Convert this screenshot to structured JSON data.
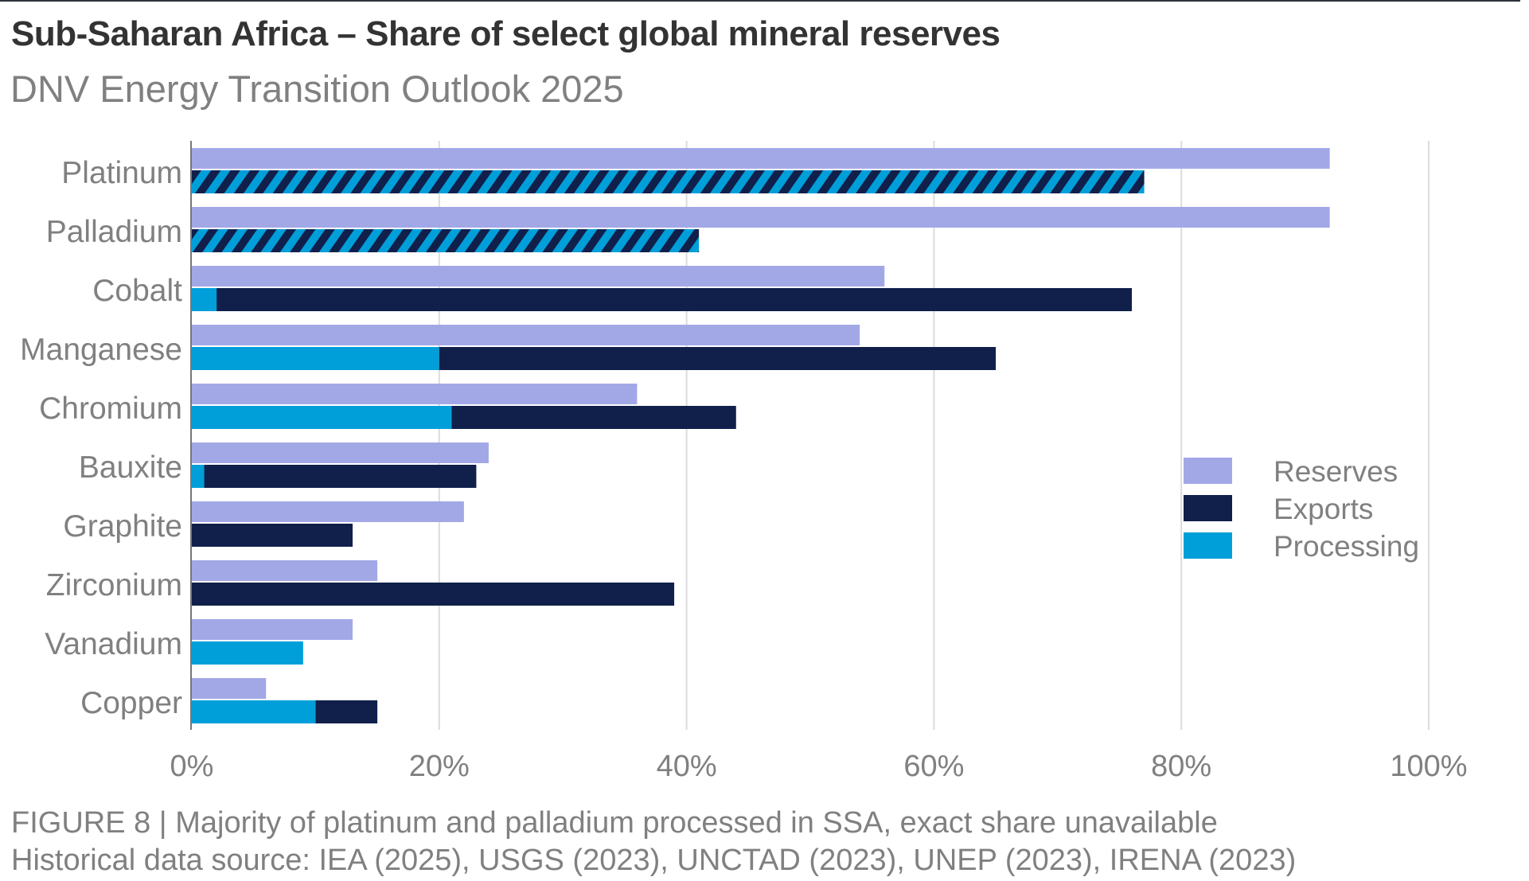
{
  "header": {
    "title": "Sub-Saharan Africa – Share of select global mineral reserves",
    "subtitle": "DNV Energy Transition Outlook 2025"
  },
  "footer": {
    "caption": "FIGURE 8 | Majority of platinum and palladium processed in SSA, exact share unavailable",
    "source": "Historical data source: IEA (2025), USGS (2023), UNCTAD (2023), UNEP (2023), IRENA (2023)"
  },
  "chart_data": {
    "type": "bar",
    "orientation": "horizontal",
    "title": "Sub-Saharan Africa – Share of select global mineral reserves",
    "subtitle": "DNV Energy Transition Outlook 2025",
    "xlabel": "",
    "ylabel": "",
    "xlim": [
      0,
      100
    ],
    "x_unit": "%",
    "x_ticks": [
      "0%",
      "20%",
      "40%",
      "60%",
      "80%",
      "100%"
    ],
    "grid": "vertical",
    "legend_position": "right",
    "categories": [
      "Platinum",
      "Palladium",
      "Cobalt",
      "Manganese",
      "Chromium",
      "Bauxite",
      "Graphite",
      "Zirconium",
      "Vanadium",
      "Copper"
    ],
    "series": [
      {
        "name": "Reserves",
        "color": "#a2a8e6",
        "bar": "top",
        "values": [
          92,
          92,
          56,
          54,
          36,
          24,
          22,
          15,
          13,
          6
        ]
      },
      {
        "name": "Processing",
        "color": "#009fd9",
        "bar": "bottom",
        "stack_order": 1,
        "values": [
          0,
          0,
          2,
          20,
          21,
          1,
          0,
          0,
          9,
          10
        ]
      },
      {
        "name": "Exports",
        "color": "#10204b",
        "bar": "bottom",
        "stack_order": 2,
        "values": [
          0,
          0,
          74,
          45,
          23,
          22,
          13,
          39,
          0,
          5
        ]
      }
    ],
    "hatched": {
      "description": "Exports and processing combined; exact processing share unavailable",
      "colors": [
        "#10204b",
        "#009fd9"
      ],
      "categories": [
        "Platinum",
        "Palladium"
      ],
      "values": [
        77,
        41
      ]
    },
    "legend": [
      {
        "label": "Reserves",
        "color": "#a2a8e6"
      },
      {
        "label": "Exports",
        "color": "#10204b"
      },
      {
        "label": "Processing",
        "color": "#009fd9"
      }
    ],
    "annotation": "FIGURE 8 | Majority of platinum and palladium processed in SSA, exact share unavailable"
  }
}
